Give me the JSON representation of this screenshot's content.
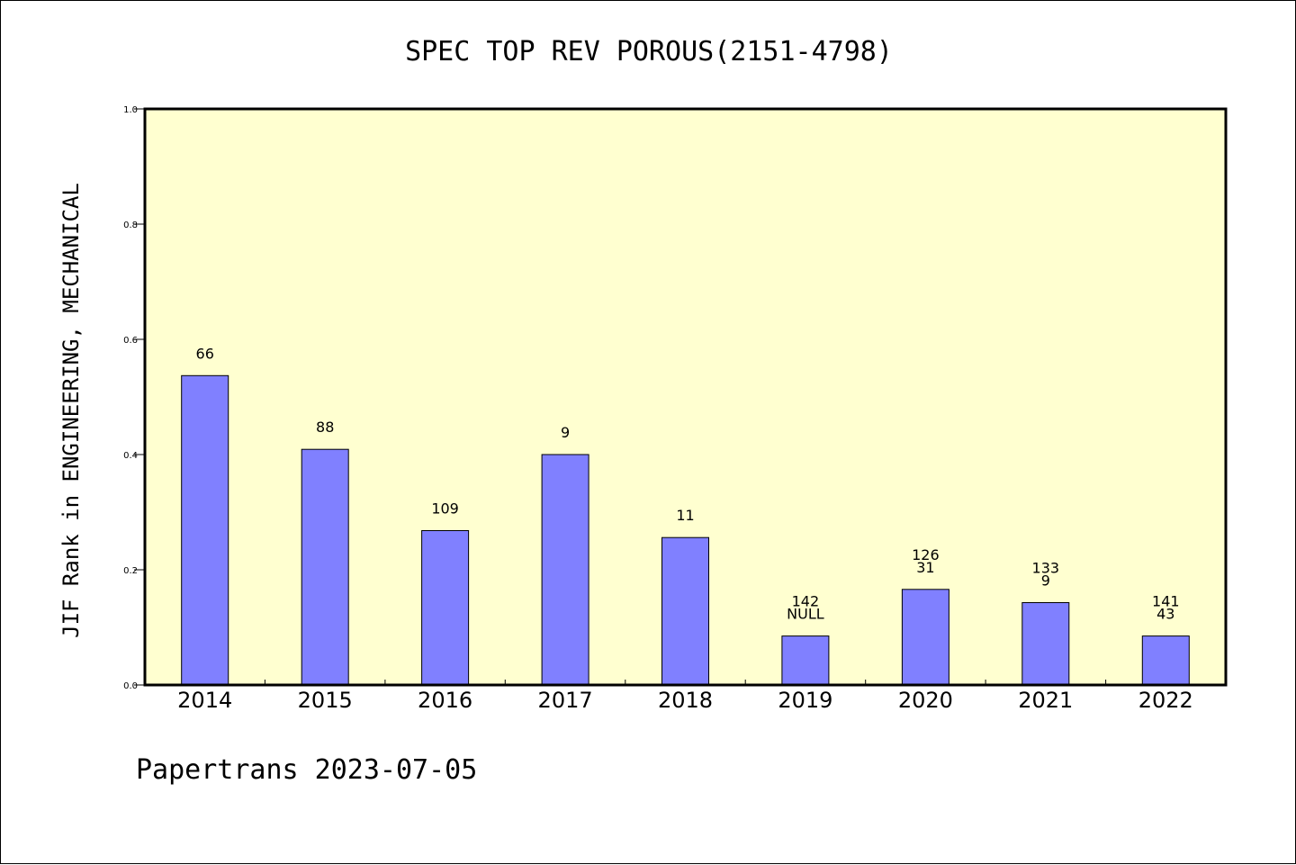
{
  "chart_data": {
    "type": "bar",
    "title": "SPEC TOP REV POROUS(2151-4798)",
    "ylabel": "JIF Rank in ENGINEERING, MECHANICAL",
    "xlabel": "",
    "categories": [
      "2014",
      "2015",
      "2016",
      "2017",
      "2018",
      "2019",
      "2020",
      "2021",
      "2022"
    ],
    "values": [
      0.537,
      0.409,
      0.268,
      0.4,
      0.256,
      0.085,
      0.166,
      0.143,
      0.085
    ],
    "bar_labels": [
      [
        "66"
      ],
      [
        "88"
      ],
      [
        "109"
      ],
      [
        "9"
      ],
      [
        "11"
      ],
      [
        "142",
        "NULL"
      ],
      [
        "126",
        "31"
      ],
      [
        "133",
        "9"
      ],
      [
        "141",
        "43"
      ]
    ],
    "ylim": [
      0.0,
      1.0
    ],
    "yticks": [
      "0.0",
      "0.2",
      "0.4",
      "0.6",
      "0.8",
      "1.0"
    ],
    "grid": false,
    "legend": "none",
    "colors": {
      "bar_fill": "#8080ff",
      "plot_background": "#ffffd0",
      "axes": "#000000"
    }
  },
  "footer": {
    "text": "Papertrans 2023-07-05"
  }
}
